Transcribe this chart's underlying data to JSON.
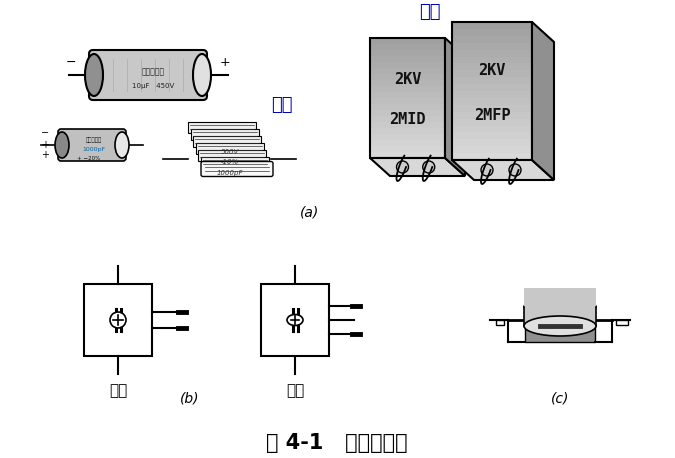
{
  "title": "图 4-1   常用电容器",
  "label_yunmu": "云母",
  "label_youzhi": "油质",
  "label_danlian": "单联",
  "label_shuanglian": "双联",
  "label_a": "(a)",
  "label_b": "(b)",
  "label_c": "(c)",
  "text_2MID": "2MID",
  "text_2KV1": "2KV",
  "text_2MFP": "2MFP",
  "text_2KV2": "2KV",
  "text_cap1": "电解电容器",
  "text_cap1_val": "10μF   450V",
  "bg_color": "#ffffff",
  "line_color": "#000000",
  "blue_color": "#0000bb",
  "gray_light": "#d0d0d0",
  "gray_mid": "#a8a8a8",
  "gray_dark": "#686868",
  "gray_cap": "#b8b8b8"
}
